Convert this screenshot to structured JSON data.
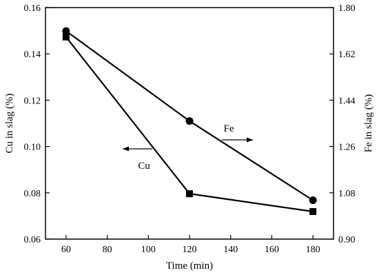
{
  "chart_data": {
    "type": "line",
    "xlabel": "Time (min)",
    "ylabel_left": "Cu in slag (%)",
    "ylabel_right": "Fe in slag (%)",
    "xlim": [
      50,
      190
    ],
    "ylim_left": [
      0.06,
      0.16
    ],
    "ylim_right": [
      0.9,
      1.8
    ],
    "x_ticks": [
      60,
      80,
      100,
      120,
      140,
      160,
      180
    ],
    "y_left_ticks": [
      0.06,
      0.08,
      0.1,
      0.12,
      0.14,
      0.16
    ],
    "y_right_ticks": [
      0.9,
      1.08,
      1.26,
      1.44,
      1.62,
      1.8
    ],
    "x_tick_labels": [
      "60",
      "80",
      "100",
      "120",
      "140",
      "160",
      "180"
    ],
    "y_left_tick_labels": [
      "0.06",
      "0.08",
      "0.10",
      "0.12",
      "0.14",
      "0.16"
    ],
    "y_right_tick_labels": [
      "0.90",
      "1.08",
      "1.26",
      "1.44",
      "1.62",
      "1.80"
    ],
    "grid": false,
    "series": [
      {
        "name": "Cu",
        "axis": "left",
        "marker": "square",
        "x": [
          60,
          120,
          180
        ],
        "values": [
          0.1473,
          0.0796,
          0.0719
        ]
      },
      {
        "name": "Fe",
        "axis": "right",
        "marker": "circle",
        "x": [
          60,
          120,
          180
        ],
        "values": [
          1.709,
          1.359,
          1.051
        ]
      }
    ],
    "annotations": [
      {
        "text": "Cu",
        "arrow_direction": "left",
        "series": "Cu"
      },
      {
        "text": "Fe",
        "arrow_direction": "right",
        "series": "Fe"
      }
    ]
  }
}
